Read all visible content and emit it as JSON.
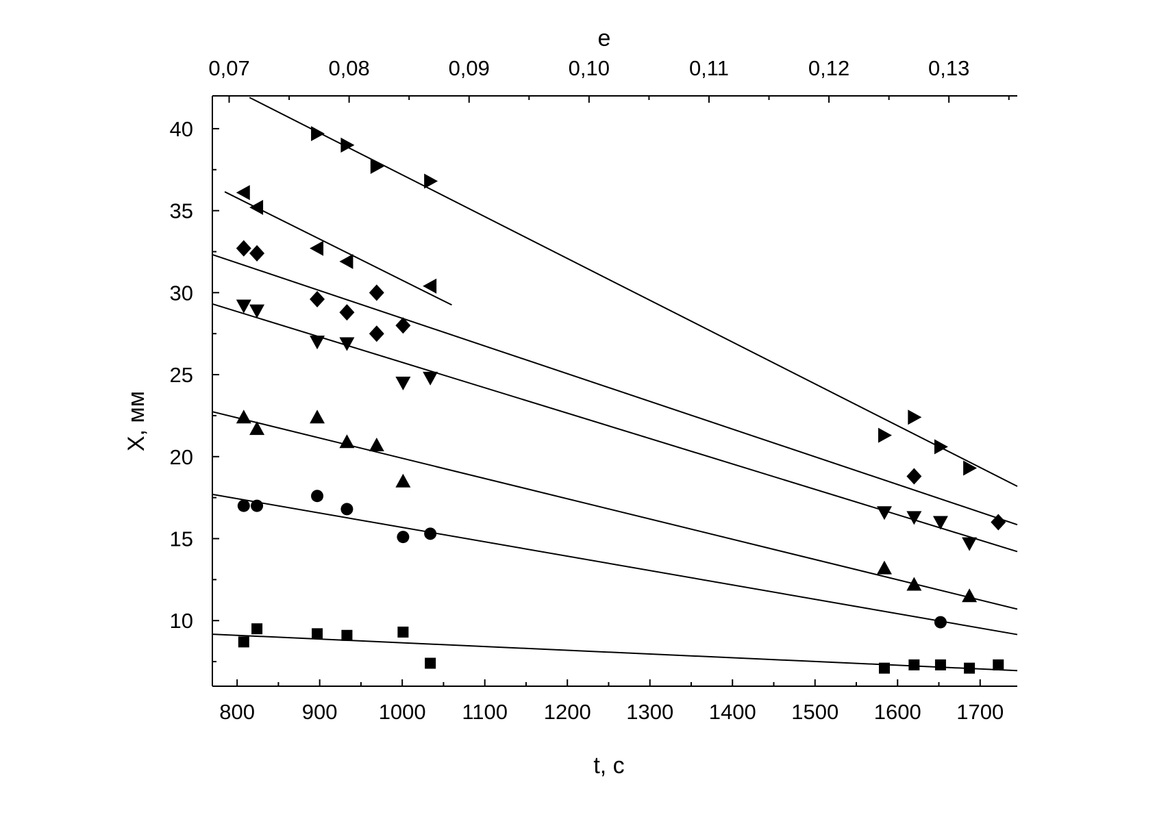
{
  "chart_data": {
    "type": "scatter",
    "xlabel": "t, с",
    "ylabel": "X, мм",
    "x2label": "e",
    "xlim": [
      770,
      1745
    ],
    "ylim": [
      6,
      42
    ],
    "x2lim": [
      0.0686,
      0.1357
    ],
    "xticks": [
      800,
      900,
      1000,
      1100,
      1200,
      1300,
      1400,
      1500,
      1600,
      1700
    ],
    "yticks": [
      10,
      15,
      20,
      25,
      30,
      35,
      40
    ],
    "x2ticks": [
      "0,07",
      "0,08",
      "0,09",
      "0,10",
      "0,11",
      "0,12",
      "0,13"
    ],
    "x2tick_values": [
      0.07,
      0.08,
      0.09,
      0.1,
      0.11,
      0.12,
      0.13
    ],
    "grid": false,
    "series": [
      {
        "marker": "square",
        "points": [
          [
            808,
            8.7
          ],
          [
            824,
            9.5
          ],
          [
            897,
            9.2
          ],
          [
            933,
            9.1
          ],
          [
            1001,
            9.3
          ],
          [
            1034,
            7.4
          ],
          [
            1584,
            7.1
          ],
          [
            1620,
            7.3
          ],
          [
            1652,
            7.3
          ],
          [
            1687,
            7.1
          ],
          [
            1722,
            7.3
          ]
        ],
        "fit": [
          [
            770,
            9.17
          ],
          [
            1745,
            6.95
          ]
        ]
      },
      {
        "marker": "circle",
        "points": [
          [
            808,
            17.0
          ],
          [
            824,
            17.0
          ],
          [
            897,
            17.6
          ],
          [
            933,
            16.8
          ],
          [
            1001,
            15.1
          ],
          [
            1034,
            15.3
          ],
          [
            1652,
            9.9
          ]
        ],
        "fit": [
          [
            770,
            17.7
          ],
          [
            1745,
            9.15
          ]
        ]
      },
      {
        "marker": "triangle-up",
        "points": [
          [
            808,
            22.4
          ],
          [
            824,
            21.7
          ],
          [
            897,
            22.4
          ],
          [
            933,
            20.9
          ],
          [
            969,
            20.7
          ],
          [
            1001,
            18.5
          ],
          [
            1584,
            13.2
          ],
          [
            1620,
            12.2
          ],
          [
            1687,
            11.5
          ]
        ],
        "fit": [
          [
            770,
            22.74
          ],
          [
            1745,
            10.7
          ]
        ]
      },
      {
        "marker": "triangle-down",
        "points": [
          [
            808,
            29.2
          ],
          [
            824,
            28.9
          ],
          [
            897,
            27.0
          ],
          [
            933,
            26.9
          ],
          [
            1001,
            24.5
          ],
          [
            1034,
            24.8
          ],
          [
            1584,
            16.6
          ],
          [
            1620,
            16.3
          ],
          [
            1652,
            16.0
          ],
          [
            1687,
            14.7
          ]
        ],
        "fit": [
          [
            770,
            29.31
          ],
          [
            1745,
            14.21
          ]
        ]
      },
      {
        "marker": "diamond",
        "points": [
          [
            808,
            32.7
          ],
          [
            824,
            32.4
          ],
          [
            897,
            29.6
          ],
          [
            933,
            28.8
          ],
          [
            969,
            30.0
          ],
          [
            969,
            27.5
          ],
          [
            1001,
            28.0
          ],
          [
            1620,
            18.8
          ],
          [
            1722,
            16.0
          ]
        ],
        "fit": [
          [
            770,
            32.32
          ],
          [
            1745,
            15.85
          ]
        ]
      },
      {
        "marker": "triangle-left",
        "points": [
          [
            808,
            36.1
          ],
          [
            824,
            35.2
          ],
          [
            897,
            32.7
          ],
          [
            933,
            31.9
          ],
          [
            1034,
            30.4
          ]
        ],
        "fit": [
          [
            785,
            36.15
          ],
          [
            1060,
            29.25
          ]
        ]
      },
      {
        "marker": "triangle-right",
        "points": [
          [
            897,
            39.7
          ],
          [
            933,
            39.0
          ],
          [
            969,
            37.7
          ],
          [
            1034,
            36.8
          ],
          [
            1584,
            21.3
          ],
          [
            1620,
            22.4
          ],
          [
            1652,
            20.6
          ],
          [
            1687,
            19.3
          ]
        ],
        "fit": [
          [
            815,
            41.9
          ],
          [
            1745,
            18.19
          ]
        ]
      }
    ]
  }
}
